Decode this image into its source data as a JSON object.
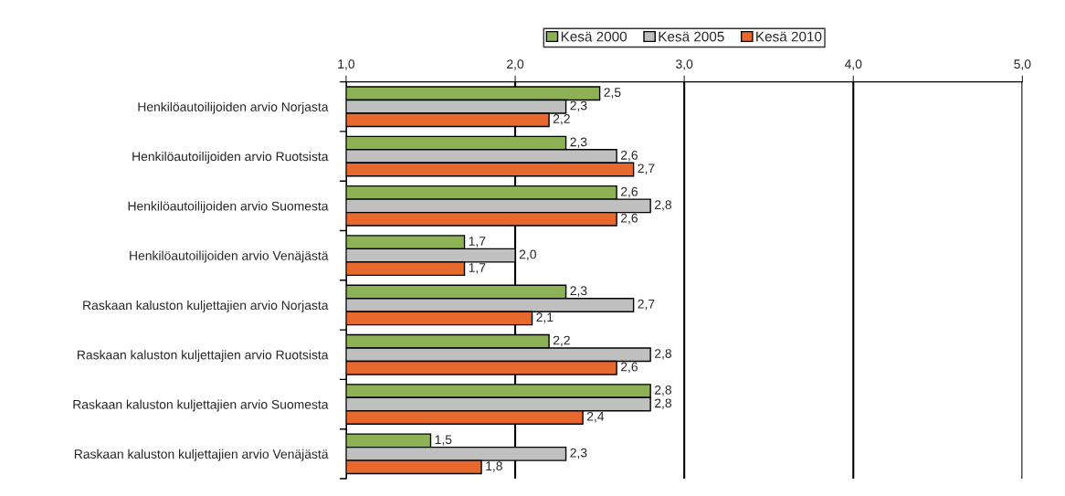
{
  "chart_data": {
    "type": "bar",
    "orientation": "horizontal",
    "categories": [
      "Henkilöautoilijoiden arvio Norjasta",
      "Henkilöautoilijoiden arvio Ruotsista",
      "Henkilöautoilijoiden arvio Suomesta",
      "Henkilöautoilijoiden arvio Venäjästä",
      "Raskaan kaluston kuljettajien arvio Norjasta",
      "Raskaan kaluston kuljettajien arvio Ruotsista",
      "Raskaan kaluston kuljettajien arvio Suomesta",
      "Raskaan kaluston kuljettajien arvio Venäjästä"
    ],
    "series": [
      {
        "name": "Kesä 2000",
        "color": "#8db255",
        "values": [
          2.5,
          2.3,
          2.6,
          1.7,
          2.3,
          2.2,
          2.8,
          1.5
        ],
        "value_labels": [
          "2,5",
          "2,3",
          "2,6",
          "1,7",
          "2,3",
          "2,2",
          "2,8",
          "1,5"
        ]
      },
      {
        "name": "Kesä 2005",
        "color": "#c0c0c0",
        "values": [
          2.3,
          2.6,
          2.8,
          2.0,
          2.7,
          2.8,
          2.8,
          2.3
        ],
        "value_labels": [
          "2,3",
          "2,6",
          "2,8",
          "2,0",
          "2,7",
          "2,8",
          "2,8",
          "2,3"
        ]
      },
      {
        "name": "Kesä 2010",
        "color": "#e8692d",
        "values": [
          2.2,
          2.7,
          2.6,
          1.7,
          2.1,
          2.6,
          2.4,
          1.8
        ],
        "value_labels": [
          "2,2",
          "2,7",
          "2,6",
          "1,7",
          "2,1",
          "2,6",
          "2,4",
          "1,8"
        ]
      }
    ],
    "xlim": [
      1.0,
      5.0
    ],
    "xticks": [
      {
        "value": 1.0,
        "label": "1,0"
      },
      {
        "value": 2.0,
        "label": "2,0"
      },
      {
        "value": 3.0,
        "label": "3,0"
      },
      {
        "value": 4.0,
        "label": "4,0"
      },
      {
        "value": 5.0,
        "label": "5,0"
      }
    ],
    "grid": "x",
    "legend": "top"
  }
}
